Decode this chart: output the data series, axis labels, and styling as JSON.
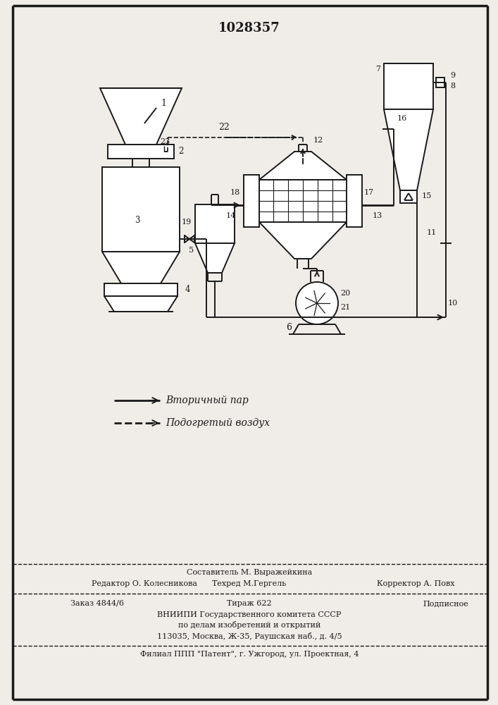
{
  "title": "1028357",
  "bg_color": "#f0ede8",
  "line_color": "#1a1a1a",
  "legend1": "Вторичный пар",
  "legend2": "Подогретый воздух",
  "footer_top": "Составитель М. Выражейкина",
  "footer_row1_c1": "Редактор О. Колесникова",
  "footer_row1_c2": "Техред М.Гергель",
  "footer_row1_c3": "Корректор А. Повх",
  "footer_order": "Заказ 4844/6",
  "footer_tirazh": "Тираж 622",
  "footer_podp": "Подписное",
  "footer_vniip1": "ВНИИПИ Государственного комитета СССР",
  "footer_vniip2": "по делам изобретений и открытий",
  "footer_vniip3": "113035, Москва, Ж-35, Раушская наб., д. 4/5",
  "footer_filial": "Филиал ППП \"Патент\", г. Ужгород, ул. Проектная, 4"
}
